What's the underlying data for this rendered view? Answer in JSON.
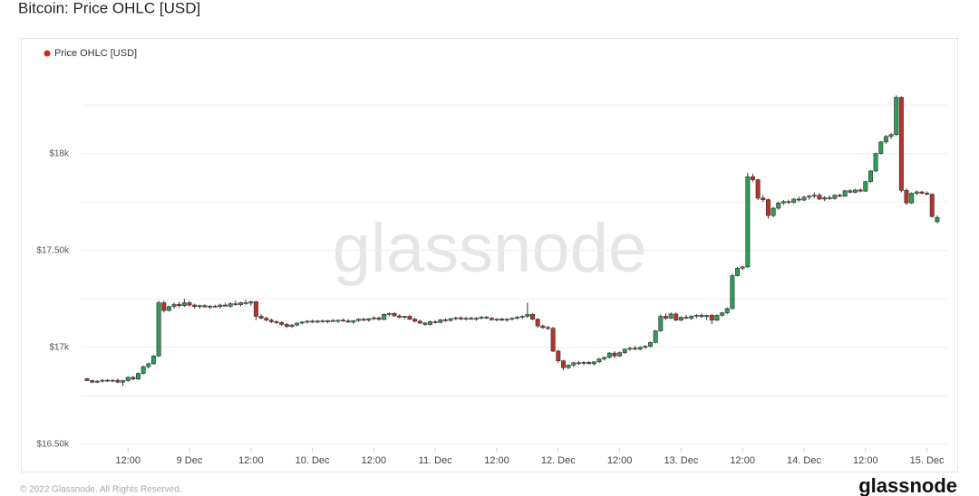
{
  "chart_data": {
    "type": "candlestick",
    "title": "Bitcoin: Price OHLC [USD]",
    "series_name": "Price OHLC [USD]",
    "legend_color": "#e0201b",
    "up_color": "#2e9b57",
    "down_color": "#b8322a",
    "watermark": "glassnode",
    "footer": "© 2022 Glassnode. All Rights Reserved.",
    "logo": "glassnode",
    "ylim": [
      16480,
      18475
    ],
    "yticks": [
      {
        "value": 16500,
        "label": "$16.50k"
      },
      {
        "value": 17000,
        "label": "$17k"
      },
      {
        "value": 17500,
        "label": "$17.50k"
      },
      {
        "value": 18000,
        "label": "$18k"
      }
    ],
    "minor_yticks": [
      16750,
      17250,
      17750,
      18250
    ],
    "grid": true,
    "xticks": [
      {
        "value": "8 Dec 12:00",
        "label": "12:00"
      },
      {
        "value": "9 Dec 00:00",
        "label": "9 Dec"
      },
      {
        "value": "9 Dec 12:00",
        "label": "12:00"
      },
      {
        "value": "10 Dec 00:00",
        "label": "10. Dec"
      },
      {
        "value": "10 Dec 12:00",
        "label": "12:00"
      },
      {
        "value": "11 Dec 00:00",
        "label": "11. Dec"
      },
      {
        "value": "11 Dec 12:00",
        "label": "12:00"
      },
      {
        "value": "12 Dec 00:00",
        "label": "12. Dec"
      },
      {
        "value": "12 Dec 12:00",
        "label": "12:00"
      },
      {
        "value": "13 Dec 00:00",
        "label": "13. Dec"
      },
      {
        "value": "13 Dec 12:00",
        "label": "12:00"
      },
      {
        "value": "14 Dec 00:00",
        "label": "14. Dec"
      },
      {
        "value": "14 Dec 12:00",
        "label": "12:00"
      },
      {
        "value": "15 Dec 00:00",
        "label": "15. Dec"
      }
    ],
    "x": [
      "8 Dec 04:00",
      "8 Dec 05:00",
      "8 Dec 06:00",
      "8 Dec 07:00",
      "8 Dec 08:00",
      "8 Dec 09:00",
      "8 Dec 10:00",
      "8 Dec 11:00",
      "8 Dec 12:00",
      "8 Dec 13:00",
      "8 Dec 14:00",
      "8 Dec 15:00",
      "8 Dec 16:00",
      "8 Dec 17:00",
      "8 Dec 18:00",
      "8 Dec 19:00",
      "8 Dec 20:00",
      "8 Dec 21:00",
      "8 Dec 22:00",
      "8 Dec 23:00",
      "9 Dec 00:00",
      "9 Dec 01:00",
      "9 Dec 02:00",
      "9 Dec 03:00",
      "9 Dec 04:00",
      "9 Dec 05:00",
      "9 Dec 06:00",
      "9 Dec 07:00",
      "9 Dec 08:00",
      "9 Dec 09:00",
      "9 Dec 10:00",
      "9 Dec 11:00",
      "9 Dec 12:00",
      "9 Dec 13:00",
      "9 Dec 14:00",
      "9 Dec 15:00",
      "9 Dec 16:00",
      "9 Dec 17:00",
      "9 Dec 18:00",
      "9 Dec 19:00",
      "9 Dec 20:00",
      "9 Dec 21:00",
      "9 Dec 22:00",
      "9 Dec 23:00",
      "10 Dec 00:00",
      "10 Dec 01:00",
      "10 Dec 02:00",
      "10 Dec 03:00",
      "10 Dec 04:00",
      "10 Dec 05:00",
      "10 Dec 06:00",
      "10 Dec 07:00",
      "10 Dec 08:00",
      "10 Dec 09:00",
      "10 Dec 10:00",
      "10 Dec 11:00",
      "10 Dec 12:00",
      "10 Dec 13:00",
      "10 Dec 14:00",
      "10 Dec 15:00",
      "10 Dec 16:00",
      "10 Dec 17:00",
      "10 Dec 18:00",
      "10 Dec 19:00",
      "10 Dec 20:00",
      "10 Dec 21:00",
      "10 Dec 22:00",
      "10 Dec 23:00",
      "11 Dec 00:00",
      "11 Dec 01:00",
      "11 Dec 02:00",
      "11 Dec 03:00",
      "11 Dec 04:00",
      "11 Dec 05:00",
      "11 Dec 06:00",
      "11 Dec 07:00",
      "11 Dec 08:00",
      "11 Dec 09:00",
      "11 Dec 10:00",
      "11 Dec 11:00",
      "11 Dec 12:00",
      "11 Dec 13:00",
      "11 Dec 14:00",
      "11 Dec 15:00",
      "11 Dec 16:00",
      "11 Dec 17:00",
      "11 Dec 18:00",
      "11 Dec 19:00",
      "11 Dec 20:00",
      "11 Dec 21:00",
      "11 Dec 22:00",
      "11 Dec 23:00",
      "12 Dec 00:00",
      "12 Dec 01:00",
      "12 Dec 02:00",
      "12 Dec 03:00",
      "12 Dec 04:00",
      "12 Dec 05:00",
      "12 Dec 06:00",
      "12 Dec 07:00",
      "12 Dec 08:00",
      "12 Dec 09:00",
      "12 Dec 10:00",
      "12 Dec 11:00",
      "12 Dec 12:00",
      "12 Dec 13:00",
      "12 Dec 14:00",
      "12 Dec 15:00",
      "12 Dec 16:00",
      "12 Dec 17:00",
      "12 Dec 18:00",
      "12 Dec 19:00",
      "12 Dec 20:00",
      "12 Dec 21:00",
      "12 Dec 22:00",
      "12 Dec 23:00",
      "13 Dec 00:00",
      "13 Dec 01:00",
      "13 Dec 02:00",
      "13 Dec 03:00",
      "13 Dec 04:00",
      "13 Dec 05:00",
      "13 Dec 06:00",
      "13 Dec 07:00",
      "13 Dec 08:00",
      "13 Dec 09:00",
      "13 Dec 10:00",
      "13 Dec 11:00",
      "13 Dec 12:00",
      "13 Dec 13:00",
      "13 Dec 14:00",
      "13 Dec 15:00",
      "13 Dec 16:00",
      "13 Dec 17:00",
      "13 Dec 18:00",
      "13 Dec 19:00",
      "13 Dec 20:00",
      "13 Dec 21:00",
      "13 Dec 22:00",
      "13 Dec 23:00",
      "14 Dec 00:00",
      "14 Dec 01:00",
      "14 Dec 02:00",
      "14 Dec 03:00",
      "14 Dec 04:00",
      "14 Dec 05:00",
      "14 Dec 06:00",
      "14 Dec 07:00",
      "14 Dec 08:00",
      "14 Dec 09:00",
      "14 Dec 10:00",
      "14 Dec 11:00",
      "14 Dec 12:00",
      "14 Dec 13:00",
      "14 Dec 14:00",
      "14 Dec 15:00",
      "14 Dec 16:00",
      "14 Dec 17:00",
      "14 Dec 18:00",
      "14 Dec 19:00",
      "14 Dec 20:00",
      "14 Dec 21:00",
      "14 Dec 22:00",
      "14 Dec 23:00",
      "15 Dec 00:00",
      "15 Dec 01:00",
      "15 Dec 02:00"
    ],
    "ohlc": [
      [
        16838,
        16842,
        16825,
        16828
      ],
      [
        16828,
        16833,
        16815,
        16820
      ],
      [
        16820,
        16830,
        16815,
        16825
      ],
      [
        16825,
        16835,
        16818,
        16830
      ],
      [
        16830,
        16836,
        16822,
        16826
      ],
      [
        16826,
        16834,
        16820,
        16830
      ],
      [
        16830,
        16838,
        16815,
        16820
      ],
      [
        16820,
        16832,
        16800,
        16828
      ],
      [
        16828,
        16850,
        16822,
        16845
      ],
      [
        16845,
        16852,
        16830,
        16836
      ],
      [
        16836,
        16870,
        16832,
        16865
      ],
      [
        16865,
        16905,
        16860,
        16900
      ],
      [
        16900,
        16920,
        16890,
        16915
      ],
      [
        16915,
        16960,
        16910,
        16955
      ],
      [
        16955,
        17240,
        16950,
        17230
      ],
      [
        17230,
        17240,
        17180,
        17190
      ],
      [
        17190,
        17215,
        17185,
        17210
      ],
      [
        17210,
        17230,
        17200,
        17222
      ],
      [
        17222,
        17235,
        17205,
        17215
      ],
      [
        17215,
        17250,
        17208,
        17230
      ],
      [
        17230,
        17240,
        17210,
        17218
      ],
      [
        17218,
        17225,
        17200,
        17210
      ],
      [
        17210,
        17220,
        17200,
        17215
      ],
      [
        17215,
        17222,
        17205,
        17208
      ],
      [
        17208,
        17218,
        17198,
        17212
      ],
      [
        17212,
        17220,
        17205,
        17210
      ],
      [
        17210,
        17225,
        17200,
        17218
      ],
      [
        17218,
        17230,
        17210,
        17212
      ],
      [
        17212,
        17232,
        17205,
        17225
      ],
      [
        17225,
        17240,
        17215,
        17220
      ],
      [
        17220,
        17235,
        17212,
        17230
      ],
      [
        17230,
        17245,
        17220,
        17228
      ],
      [
        17228,
        17240,
        17215,
        17235
      ],
      [
        17235,
        17240,
        17140,
        17160
      ],
      [
        17160,
        17170,
        17145,
        17150
      ],
      [
        17150,
        17158,
        17135,
        17140
      ],
      [
        17140,
        17148,
        17125,
        17132
      ],
      [
        17132,
        17140,
        17120,
        17128
      ],
      [
        17128,
        17135,
        17110,
        17118
      ],
      [
        17118,
        17125,
        17100,
        17108
      ],
      [
        17108,
        17120,
        17100,
        17115
      ],
      [
        17115,
        17128,
        17108,
        17125
      ],
      [
        17125,
        17135,
        17118,
        17130
      ],
      [
        17130,
        17140,
        17122,
        17135
      ],
      [
        17135,
        17142,
        17125,
        17130
      ],
      [
        17130,
        17140,
        17124,
        17136
      ],
      [
        17136,
        17144,
        17128,
        17132
      ],
      [
        17132,
        17140,
        17125,
        17138
      ],
      [
        17138,
        17146,
        17130,
        17134
      ],
      [
        17134,
        17142,
        17126,
        17140
      ],
      [
        17140,
        17148,
        17132,
        17136
      ],
      [
        17136,
        17145,
        17128,
        17130
      ],
      [
        17130,
        17140,
        17122,
        17138
      ],
      [
        17138,
        17150,
        17132,
        17145
      ],
      [
        17145,
        17152,
        17135,
        17140
      ],
      [
        17140,
        17150,
        17132,
        17148
      ],
      [
        17148,
        17160,
        17140,
        17152
      ],
      [
        17152,
        17158,
        17138,
        17144
      ],
      [
        17144,
        17175,
        17140,
        17170
      ],
      [
        17170,
        17180,
        17160,
        17175
      ],
      [
        17175,
        17182,
        17158,
        17162
      ],
      [
        17162,
        17170,
        17150,
        17155
      ],
      [
        17155,
        17162,
        17145,
        17160
      ],
      [
        17160,
        17166,
        17140,
        17145
      ],
      [
        17145,
        17152,
        17128,
        17135
      ],
      [
        17135,
        17142,
        17120,
        17125
      ],
      [
        17125,
        17130,
        17112,
        17118
      ],
      [
        17118,
        17138,
        17112,
        17132
      ],
      [
        17132,
        17140,
        17122,
        17128
      ],
      [
        17128,
        17146,
        17124,
        17142
      ],
      [
        17142,
        17150,
        17132,
        17138
      ],
      [
        17138,
        17152,
        17134,
        17148
      ],
      [
        17148,
        17158,
        17140,
        17152
      ],
      [
        17152,
        17160,
        17140,
        17146
      ],
      [
        17146,
        17156,
        17138,
        17150
      ],
      [
        17150,
        17158,
        17142,
        17145
      ],
      [
        17145,
        17155,
        17136,
        17150
      ],
      [
        17150,
        17162,
        17144,
        17155
      ],
      [
        17155,
        17162,
        17146,
        17150
      ],
      [
        17150,
        17156,
        17138,
        17142
      ],
      [
        17142,
        17150,
        17134,
        17146
      ],
      [
        17146,
        17152,
        17136,
        17140
      ],
      [
        17140,
        17150,
        17132,
        17145
      ],
      [
        17145,
        17155,
        17138,
        17150
      ],
      [
        17150,
        17162,
        17142,
        17155
      ],
      [
        17155,
        17165,
        17146,
        17160
      ],
      [
        17160,
        17230,
        17150,
        17170
      ],
      [
        17170,
        17175,
        17140,
        17145
      ],
      [
        17145,
        17150,
        17100,
        17110
      ],
      [
        17110,
        17118,
        17095,
        17102
      ],
      [
        17102,
        17110,
        17090,
        17098
      ],
      [
        17098,
        17105,
        16975,
        16980
      ],
      [
        16980,
        16988,
        16920,
        16930
      ],
      [
        16930,
        16935,
        16880,
        16895
      ],
      [
        16895,
        16912,
        16888,
        16908
      ],
      [
        16908,
        16925,
        16900,
        16920
      ],
      [
        16920,
        16930,
        16910,
        16918
      ],
      [
        16918,
        16928,
        16908,
        16922
      ],
      [
        16922,
        16930,
        16912,
        16915
      ],
      [
        16915,
        16928,
        16906,
        16925
      ],
      [
        16925,
        16945,
        16920,
        16940
      ],
      [
        16940,
        16952,
        16932,
        16948
      ],
      [
        16948,
        16975,
        16942,
        16970
      ],
      [
        16970,
        16980,
        16945,
        16955
      ],
      [
        16955,
        16978,
        16950,
        16972
      ],
      [
        16972,
        16995,
        16966,
        16990
      ],
      [
        16990,
        17002,
        16982,
        16995
      ],
      [
        16995,
        17008,
        16985,
        16990
      ],
      [
        16990,
        17005,
        16984,
        17000
      ],
      [
        17000,
        17012,
        16992,
        17005
      ],
      [
        17005,
        17030,
        17000,
        17025
      ],
      [
        17025,
        17090,
        17020,
        17085
      ],
      [
        17085,
        17170,
        17080,
        17160
      ],
      [
        17160,
        17175,
        17140,
        17150
      ],
      [
        17150,
        17180,
        17146,
        17172
      ],
      [
        17172,
        17180,
        17135,
        17140
      ],
      [
        17140,
        17160,
        17135,
        17155
      ],
      [
        17155,
        17168,
        17145,
        17150
      ],
      [
        17150,
        17165,
        17142,
        17160
      ],
      [
        17160,
        17172,
        17150,
        17165
      ],
      [
        17165,
        17175,
        17152,
        17158
      ],
      [
        17158,
        17168,
        17140,
        17165
      ],
      [
        17165,
        17172,
        17120,
        17140
      ],
      [
        17140,
        17170,
        17135,
        17165
      ],
      [
        17165,
        17182,
        17158,
        17178
      ],
      [
        17178,
        17205,
        17172,
        17200
      ],
      [
        17200,
        17380,
        17195,
        17370
      ],
      [
        17370,
        17415,
        17365,
        17408
      ],
      [
        17408,
        17420,
        17398,
        17415
      ],
      [
        17415,
        17900,
        17410,
        17880
      ],
      [
        17880,
        17895,
        17855,
        17865
      ],
      [
        17865,
        17870,
        17760,
        17770
      ],
      [
        17770,
        17785,
        17750,
        17762
      ],
      [
        17762,
        17768,
        17665,
        17680
      ],
      [
        17680,
        17725,
        17672,
        17718
      ],
      [
        17718,
        17752,
        17710,
        17745
      ],
      [
        17745,
        17760,
        17735,
        17752
      ],
      [
        17752,
        17762,
        17740,
        17748
      ],
      [
        17748,
        17770,
        17742,
        17765
      ],
      [
        17765,
        17778,
        17752,
        17760
      ],
      [
        17760,
        17782,
        17755,
        17775
      ],
      [
        17775,
        17788,
        17762,
        17780
      ],
      [
        17780,
        17800,
        17770,
        17785
      ],
      [
        17785,
        17795,
        17760,
        17765
      ],
      [
        17765,
        17780,
        17755,
        17772
      ],
      [
        17772,
        17785,
        17760,
        17768
      ],
      [
        17768,
        17790,
        17762,
        17785
      ],
      [
        17785,
        17792,
        17775,
        17780
      ],
      [
        17780,
        17812,
        17776,
        17808
      ],
      [
        17808,
        17815,
        17795,
        17800
      ],
      [
        17800,
        17818,
        17795,
        17812
      ],
      [
        17812,
        17820,
        17800,
        17806
      ],
      [
        17806,
        17860,
        17802,
        17855
      ],
      [
        17855,
        17915,
        17850,
        17910
      ],
      [
        17910,
        18005,
        17905,
        18000
      ],
      [
        18000,
        18065,
        17995,
        18060
      ],
      [
        18060,
        18095,
        18050,
        18088
      ],
      [
        18088,
        18105,
        18075,
        18098
      ],
      [
        18098,
        18300,
        18090,
        18290
      ],
      [
        18290,
        18295,
        17800,
        17810
      ],
      [
        17810,
        17820,
        17735,
        17745
      ],
      [
        17745,
        17800,
        17740,
        17795
      ],
      [
        17795,
        17810,
        17785,
        17802
      ],
      [
        17802,
        17808,
        17790,
        17795
      ],
      [
        17795,
        17805,
        17785,
        17790
      ],
      [
        17790,
        17795,
        17670,
        17675
      ],
      [
        17648,
        17680,
        17640,
        17670
      ]
    ]
  }
}
